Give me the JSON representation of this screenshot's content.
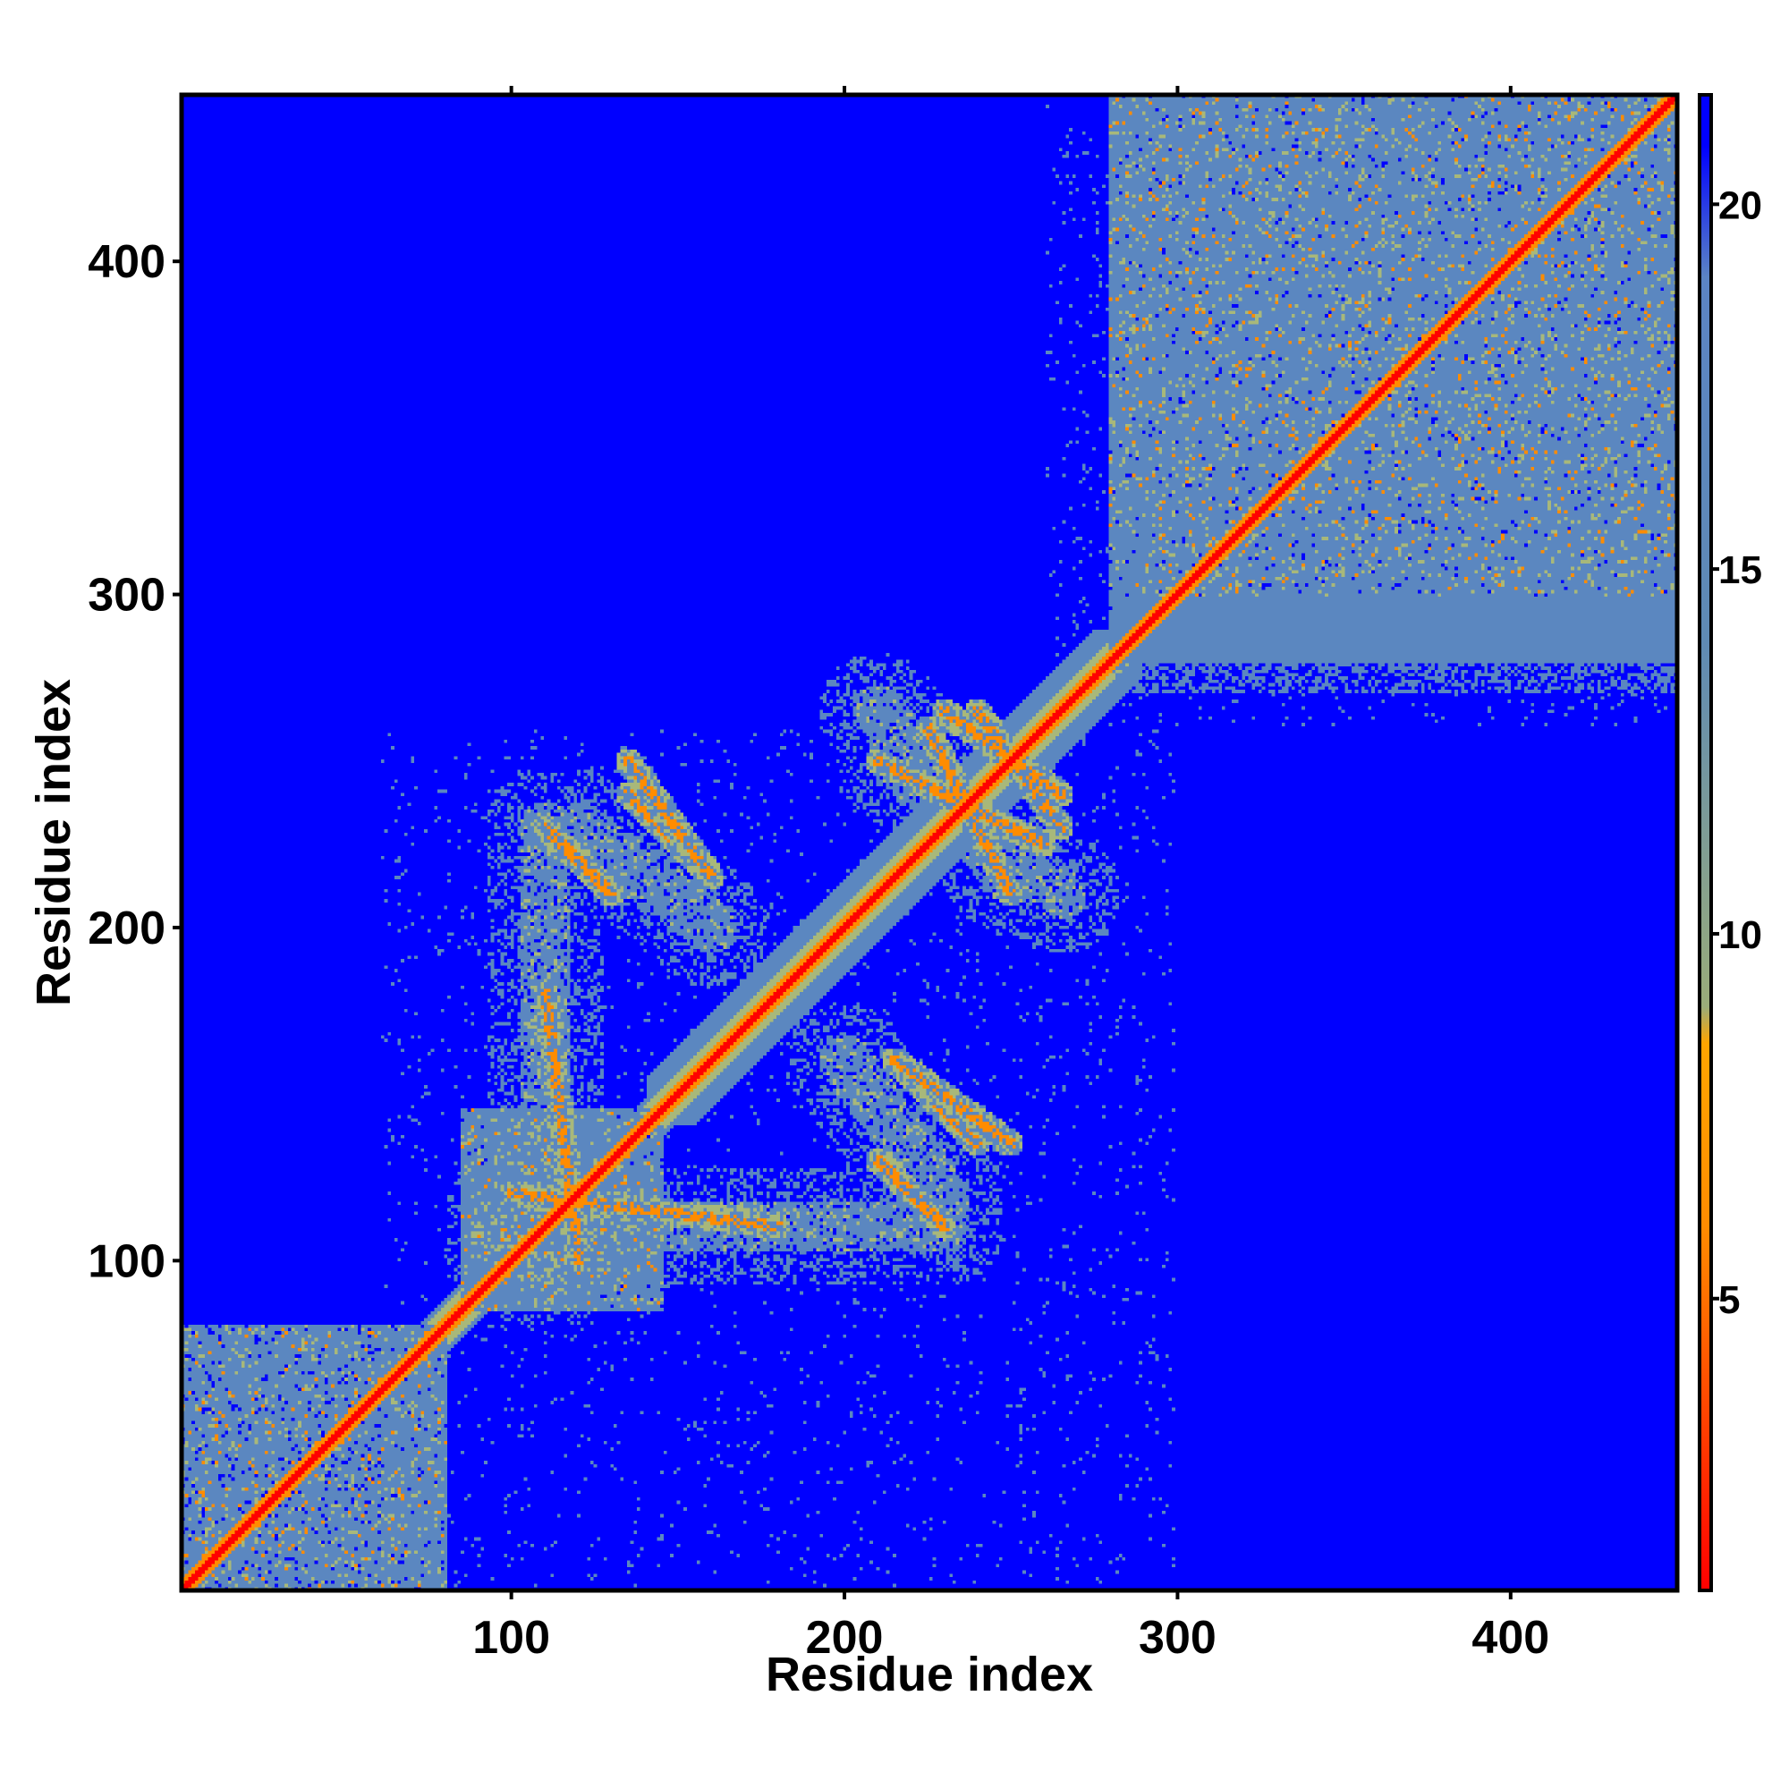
{
  "chart_data": {
    "type": "heatmap",
    "title": "",
    "xlabel": "Residue index",
    "ylabel": "Residue index",
    "xlim": [
      1,
      450
    ],
    "ylim": [
      1,
      450
    ],
    "x_ticks": [
      100,
      200,
      300,
      400
    ],
    "y_ticks": [
      100,
      200,
      300,
      400
    ],
    "colorbar": {
      "range": [
        1,
        21.5
      ],
      "ticks": [
        5,
        10,
        15,
        20
      ],
      "colors": [
        {
          "value": 1,
          "color": "#ff0000"
        },
        {
          "value": 6,
          "color": "#ff8c00"
        },
        {
          "value": 8.5,
          "color": "#ffa500"
        },
        {
          "value": 9,
          "color": "#9aac7a"
        },
        {
          "value": 14,
          "color": "#5f8ab4"
        },
        {
          "value": 19,
          "color": "#5b84c4"
        },
        {
          "value": 20.8,
          "color": "#0000ff"
        }
      ]
    },
    "colors": {
      "far": "#0000ff",
      "medium": "#5b87c0",
      "near": "#a8b87a",
      "close": "#ff8c00",
      "diagonal": "#ff0000"
    },
    "domains": [
      {
        "start": 1,
        "end": 80
      },
      {
        "start": 85,
        "end": 145
      },
      {
        "start": 280,
        "end": 450
      }
    ]
  }
}
